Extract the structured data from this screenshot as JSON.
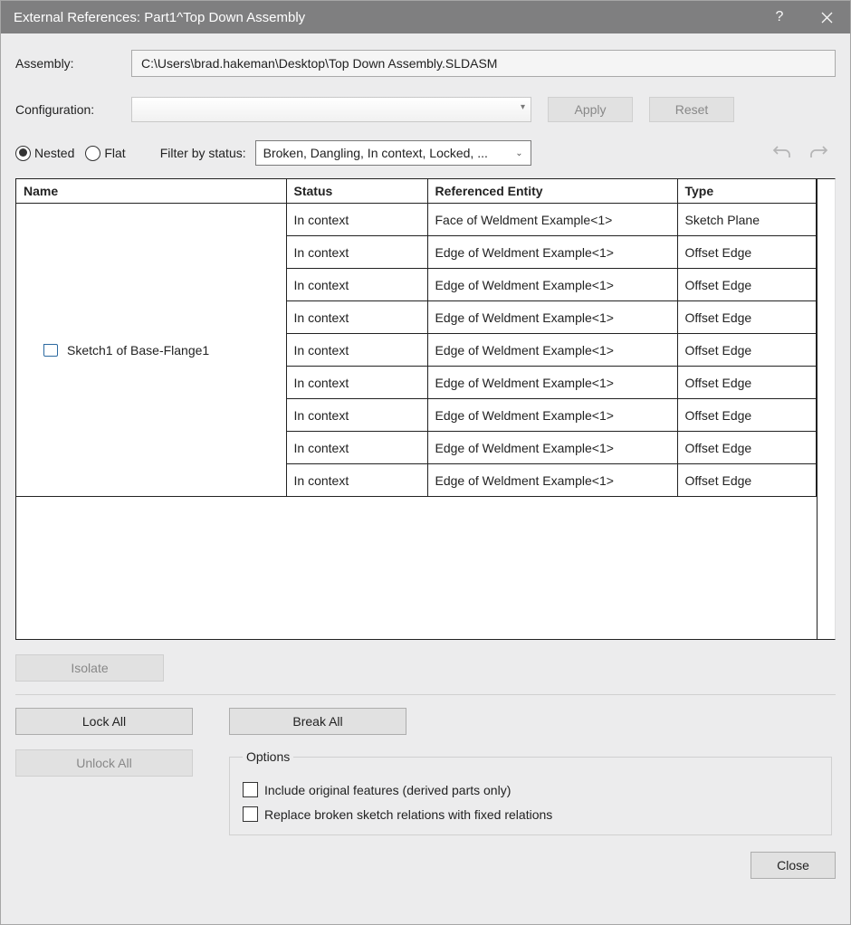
{
  "window": {
    "title": "External References: Part1^Top Down Assembly"
  },
  "assembly": {
    "label": "Assembly:",
    "path": "C:\\Users\\brad.hakeman\\Desktop\\Top Down Assembly.SLDASM"
  },
  "configuration": {
    "label": "Configuration:",
    "apply_label": "Apply",
    "reset_label": "Reset"
  },
  "view": {
    "nested_label": "Nested",
    "flat_label": "Flat",
    "nested_selected": true,
    "filter_label": "Filter by status:",
    "filter_text": "Broken, Dangling, In context, Locked, ..."
  },
  "table": {
    "columns": [
      "Name",
      "Status",
      "Referenced Entity",
      "Type"
    ],
    "name_cell": "Sketch1  of  Base-Flange1",
    "rows": [
      {
        "status": "In context",
        "entity": "Face of Weldment Example<1>",
        "type": "Sketch Plane"
      },
      {
        "status": "In context",
        "entity": "Edge of Weldment Example<1>",
        "type": "Offset Edge"
      },
      {
        "status": "In context",
        "entity": "Edge of Weldment Example<1>",
        "type": "Offset Edge"
      },
      {
        "status": "In context",
        "entity": "Edge of Weldment Example<1>",
        "type": "Offset Edge"
      },
      {
        "status": "In context",
        "entity": "Edge of Weldment Example<1>",
        "type": "Offset Edge"
      },
      {
        "status": "In context",
        "entity": "Edge of Weldment Example<1>",
        "type": "Offset Edge"
      },
      {
        "status": "In context",
        "entity": "Edge of Weldment Example<1>",
        "type": "Offset Edge"
      },
      {
        "status": "In context",
        "entity": "Edge of Weldment Example<1>",
        "type": "Offset Edge"
      },
      {
        "status": "In context",
        "entity": "Edge of Weldment Example<1>",
        "type": "Offset Edge"
      }
    ]
  },
  "buttons": {
    "isolate": "Isolate",
    "lock_all": "Lock All",
    "break_all": "Break All",
    "unlock_all": "Unlock All",
    "close": "Close"
  },
  "options": {
    "legend": "Options",
    "include_original": "Include original features (derived parts only)",
    "replace_broken": "Replace broken sketch relations with fixed relations"
  },
  "colors": {
    "titlebar_bg": "#7f7f80",
    "body_bg": "#ececed",
    "border": "#222222",
    "disabled_text": "#888888",
    "button_bg": "#e1e1e1"
  }
}
